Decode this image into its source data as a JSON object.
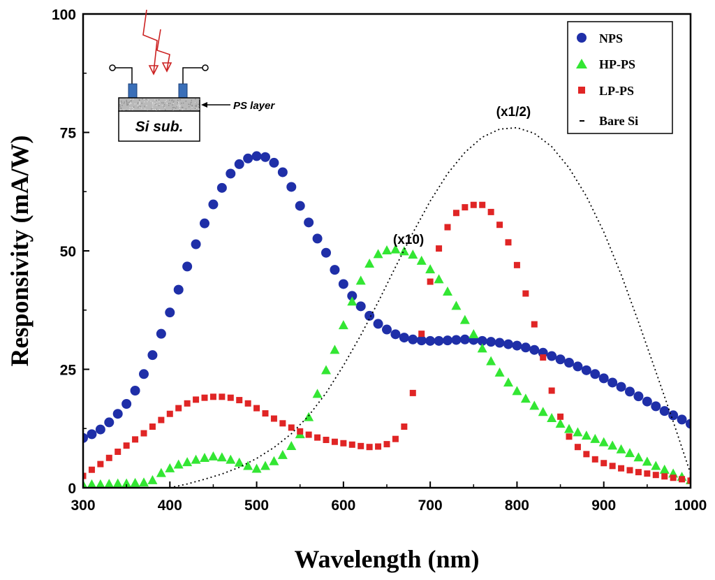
{
  "chart_data": {
    "type": "scatter",
    "xlabel": "Wavelength (nm)",
    "ylabel": "Responsivity (mA/W)",
    "xlim": [
      300,
      1000
    ],
    "ylim": [
      0,
      100
    ],
    "xticks": [
      300,
      400,
      500,
      600,
      700,
      800,
      900,
      1000
    ],
    "yticks": [
      0,
      25,
      50,
      75,
      100
    ],
    "legend_position": "top-right",
    "series": [
      {
        "name": "NPS",
        "marker": "circle",
        "color": "#1f2fa8",
        "x": [
          300,
          310,
          320,
          330,
          340,
          350,
          360,
          370,
          380,
          390,
          400,
          410,
          420,
          430,
          440,
          450,
          460,
          470,
          480,
          490,
          500,
          510,
          520,
          530,
          540,
          550,
          560,
          570,
          580,
          590,
          600,
          610,
          620,
          630,
          640,
          650,
          660,
          670,
          680,
          690,
          700,
          710,
          720,
          730,
          740,
          750,
          760,
          770,
          780,
          790,
          800,
          810,
          820,
          830,
          840,
          850,
          860,
          870,
          880,
          890,
          900,
          910,
          920,
          930,
          940,
          950,
          960,
          970,
          980,
          990,
          1000
        ],
        "y": [
          10.5,
          11.3,
          12.3,
          13.8,
          15.6,
          17.7,
          20.5,
          24,
          28,
          32.5,
          37,
          41.8,
          46.7,
          51.4,
          55.8,
          59.8,
          63.3,
          66.3,
          68.3,
          69.5,
          70,
          69.8,
          68.6,
          66.6,
          63.5,
          59.5,
          56,
          52.6,
          49.6,
          46,
          43,
          40.5,
          38.3,
          36.3,
          34.6,
          33.4,
          32.4,
          31.7,
          31.3,
          31.1,
          31,
          31,
          31.1,
          31.2,
          31.3,
          31.2,
          31,
          30.8,
          30.6,
          30.3,
          30,
          29.6,
          29.1,
          28.5,
          27.8,
          27.1,
          26.4,
          25.6,
          24.8,
          24,
          23.1,
          22.2,
          21.3,
          20.3,
          19.3,
          18.2,
          17.2,
          16.2,
          15.3,
          14.4,
          13.5
        ]
      },
      {
        "name": "HP-PS",
        "marker": "triangle",
        "color": "#33e633",
        "x": [
          300,
          310,
          320,
          330,
          340,
          350,
          360,
          370,
          380,
          390,
          400,
          410,
          420,
          430,
          440,
          450,
          460,
          470,
          480,
          490,
          500,
          510,
          520,
          530,
          540,
          550,
          560,
          570,
          580,
          590,
          600,
          610,
          620,
          630,
          640,
          650,
          660,
          670,
          680,
          690,
          700,
          710,
          720,
          730,
          740,
          750,
          760,
          770,
          780,
          790,
          800,
          810,
          820,
          830,
          840,
          850,
          860,
          870,
          880,
          890,
          900,
          910,
          920,
          930,
          940,
          950,
          960,
          970,
          980,
          990,
          1000
        ],
        "y": [
          0.5,
          0.6,
          0.6,
          0.7,
          0.8,
          0.8,
          0.9,
          1,
          1.5,
          3,
          4,
          4.8,
          5.3,
          5.8,
          6.2,
          6.5,
          6.3,
          5.8,
          5.2,
          4.5,
          3.9,
          4.5,
          5.5,
          6.8,
          8.7,
          11.2,
          14.8,
          19.7,
          24.7,
          29,
          34.2,
          39.2,
          43.6,
          47.2,
          49.2,
          50,
          50.2,
          49.8,
          49.1,
          47.8,
          46,
          43.9,
          41.3,
          38.3,
          35.3,
          32.3,
          29.3,
          26.6,
          24.2,
          22.1,
          20.3,
          18.7,
          17.2,
          15.9,
          14.6,
          13.4,
          12.3,
          11.6,
          10.9,
          10.2,
          9.5,
          8.8,
          8,
          7.2,
          6.3,
          5.4,
          4.5,
          3.7,
          2.9,
          2.2,
          1.5
        ]
      },
      {
        "name": "LP-PS",
        "marker": "square",
        "color": "#e02525",
        "x": [
          300,
          310,
          320,
          330,
          340,
          350,
          360,
          370,
          380,
          390,
          400,
          410,
          420,
          430,
          440,
          450,
          460,
          470,
          480,
          490,
          500,
          510,
          520,
          530,
          540,
          550,
          560,
          570,
          580,
          590,
          600,
          610,
          620,
          630,
          640,
          650,
          660,
          670,
          680,
          690,
          700,
          710,
          720,
          730,
          740,
          750,
          760,
          770,
          780,
          790,
          800,
          810,
          820,
          830,
          840,
          850,
          860,
          870,
          880,
          890,
          900,
          910,
          920,
          930,
          940,
          950,
          960,
          970,
          980,
          990,
          1000
        ],
        "y": [
          2.5,
          3.8,
          5,
          6.3,
          7.6,
          8.9,
          10.2,
          11.5,
          12.9,
          14.3,
          15.6,
          16.8,
          17.8,
          18.6,
          19,
          19.2,
          19.2,
          19,
          18.5,
          17.8,
          16.8,
          15.7,
          14.6,
          13.6,
          12.7,
          11.9,
          11.2,
          10.6,
          10.1,
          9.7,
          9.4,
          9.1,
          8.8,
          8.6,
          8.7,
          9.2,
          10.3,
          12.9,
          20,
          32.5,
          43.5,
          50.5,
          55,
          58,
          59.2,
          59.7,
          59.7,
          58.2,
          55.5,
          51.8,
          47,
          41,
          34.5,
          27.5,
          20.5,
          15,
          10.8,
          8.6,
          7.1,
          6,
          5.2,
          4.6,
          4.1,
          3.7,
          3.3,
          3,
          2.7,
          2.4,
          2.1,
          1.8,
          1.5
        ]
      },
      {
        "name": "Bare Si",
        "marker": "dotted-line",
        "color": "#000000",
        "x": [
          400,
          420,
          440,
          460,
          480,
          500,
          520,
          540,
          560,
          580,
          600,
          620,
          640,
          660,
          680,
          700,
          720,
          740,
          760,
          780,
          800,
          820,
          840,
          860,
          880,
          900,
          920,
          940,
          960,
          980,
          1000
        ],
        "y": [
          0,
          0.8,
          1.8,
          2.9,
          4.3,
          6.2,
          8.5,
          11.4,
          15.2,
          20,
          25.8,
          32.2,
          39.2,
          46.6,
          53.8,
          60.5,
          66.3,
          70.8,
          74,
          75.7,
          76,
          74.8,
          72,
          67.5,
          61.5,
          54,
          45,
          35,
          24.5,
          14,
          3
        ]
      }
    ],
    "annotations": [
      {
        "text": "(x10)",
        "x": 675,
        "y": 51.5
      },
      {
        "text": "(x1/2)",
        "x": 796,
        "y": 78.5
      }
    ],
    "inset": {
      "substrate_label": "Si sub.",
      "layer_label": "PS layer"
    }
  }
}
